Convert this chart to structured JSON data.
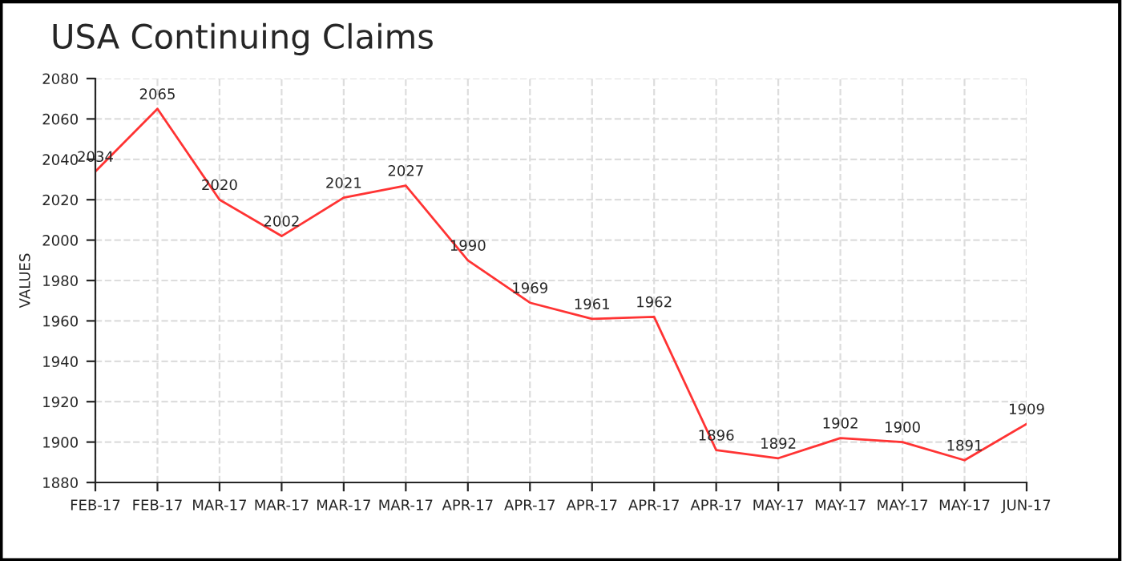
{
  "chart_data": {
    "type": "line",
    "title": "USA Continuing Claims",
    "ylabel": "VALUES",
    "categories": [
      "FEB-17",
      "FEB-17",
      "MAR-17",
      "MAR-17",
      "MAR-17",
      "MAR-17",
      "APR-17",
      "APR-17",
      "APR-17",
      "APR-17",
      "APR-17",
      "MAY-17",
      "MAY-17",
      "MAY-17",
      "MAY-17",
      "JUN-17"
    ],
    "series": [
      {
        "color": "#ff3333",
        "values": [
          2034,
          2065,
          2020,
          2002,
          2021,
          2027,
          1990,
          1969,
          1961,
          1962,
          1896,
          1892,
          1902,
          1900,
          1891,
          1909
        ]
      }
    ],
    "ylim": [
      1880,
      2080
    ],
    "yticks": [
      1880,
      1900,
      1920,
      1940,
      1960,
      1980,
      2000,
      2020,
      2040,
      2060,
      2080
    ],
    "grid": true,
    "data_labels": true,
    "marker": "none",
    "line_style": "solid",
    "legend": false
  }
}
